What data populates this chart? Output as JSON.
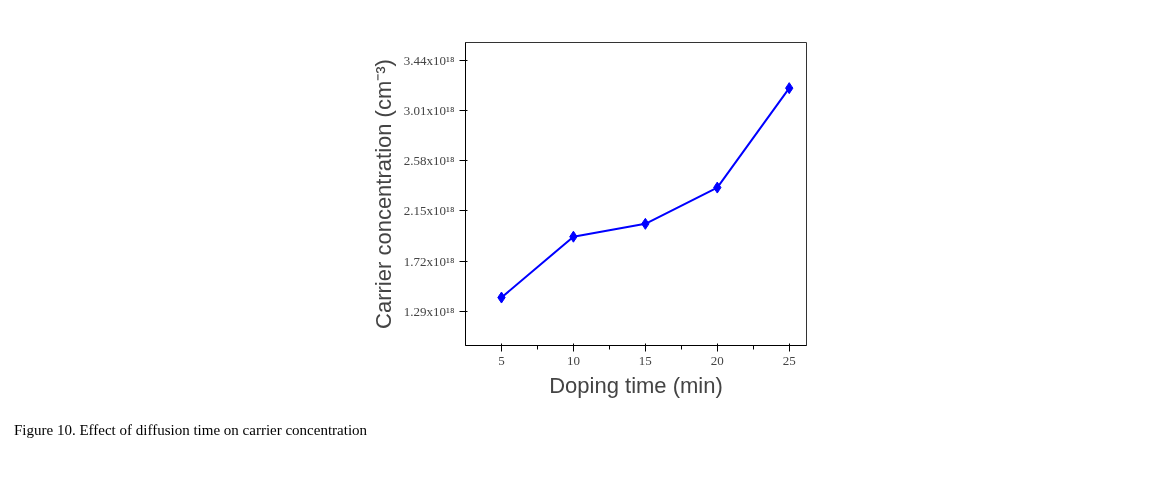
{
  "chart_data": {
    "type": "line",
    "xlabel": "Doping time (min)",
    "ylabel": "Carrier concentration (cm⁻³)",
    "x": [
      5,
      10,
      15,
      20,
      25
    ],
    "series": [
      {
        "color": "#0000ff",
        "values": [
          1.41e+18,
          1.93e+18,
          2.04e+18,
          2.35e+18,
          3.2e+18
        ]
      }
    ],
    "marker": "diamond",
    "line_style": "solid",
    "grid": false,
    "xlim": [
      2.5,
      26.2
    ],
    "xticks": [
      5,
      10,
      15,
      20,
      25
    ],
    "ylim": [
      1e+18,
      3.59e+18
    ],
    "yticks": [
      {
        "value": 1.29e+18,
        "label": "1.29x10¹⁸"
      },
      {
        "value": 1.72e+18,
        "label": "1.72x10¹⁸"
      },
      {
        "value": 2.15e+18,
        "label": "2.15x10¹⁸"
      },
      {
        "value": 2.58e+18,
        "label": "2.58x10¹⁸"
      },
      {
        "value": 3.01e+18,
        "label": "3.01x10¹⁸"
      },
      {
        "value": 3.44e+18,
        "label": "3.44x10¹⁸"
      }
    ],
    "annotations": [
      "Figure 10. Effect of diffusion time on carrier concentration"
    ]
  }
}
